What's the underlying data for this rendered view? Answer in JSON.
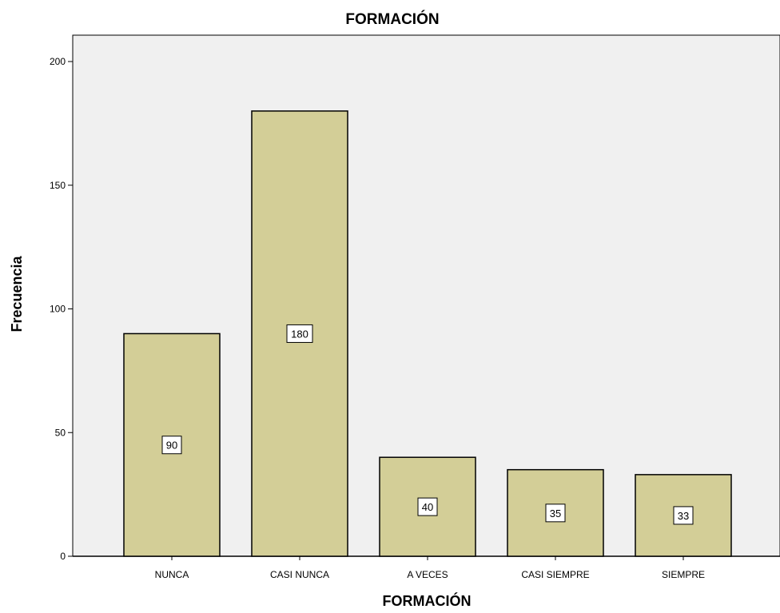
{
  "chart_data": {
    "type": "bar",
    "title": "FORMACIÓN",
    "xlabel": "FORMACIÓN",
    "ylabel": "Frecuencia",
    "categories": [
      "NUNCA",
      "CASI NUNCA",
      "A VECES",
      "CASI SIEMPRE",
      "SIEMPRE"
    ],
    "values": [
      90,
      180,
      40,
      35,
      33
    ],
    "data_labels": [
      "90",
      "180",
      "40",
      "35",
      "33"
    ],
    "ylim": [
      0,
      200
    ],
    "yticks": [
      0,
      50,
      100,
      150,
      200
    ],
    "grid": false,
    "legend": "none"
  },
  "colors": {
    "plot_background": "#f0f0f0",
    "bar_fill": "#d3ce97",
    "bar_stroke": "#000000",
    "label_box": "#ffffff"
  }
}
